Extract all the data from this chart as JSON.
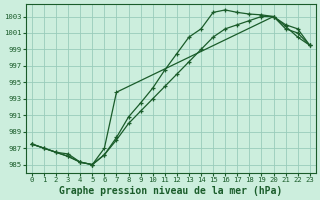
{
  "title": "Graphe pression niveau de la mer (hPa)",
  "bg_color": "#cceedd",
  "grid_color": "#99ccbb",
  "line_color": "#1a5c2a",
  "xlim": [
    -0.5,
    23.5
  ],
  "ylim": [
    984.0,
    1004.5
  ],
  "yticks": [
    985,
    987,
    989,
    991,
    993,
    995,
    997,
    999,
    1001,
    1003
  ],
  "xticks": [
    0,
    1,
    2,
    3,
    4,
    5,
    6,
    7,
    8,
    9,
    10,
    11,
    12,
    13,
    14,
    15,
    16,
    17,
    18,
    19,
    20,
    21,
    22,
    23
  ],
  "series1_x": [
    0,
    1,
    2,
    3,
    4,
    5,
    6,
    7,
    8,
    9,
    10,
    11,
    12,
    13,
    14,
    15,
    16,
    17,
    18,
    19,
    20,
    21,
    22,
    23
  ],
  "series1_y": [
    987.5,
    987.0,
    986.5,
    986.3,
    985.3,
    985.0,
    986.2,
    988.3,
    990.8,
    992.5,
    994.3,
    996.5,
    998.5,
    1000.5,
    1001.5,
    1003.5,
    1003.8,
    1003.5,
    1003.3,
    1003.2,
    1003.0,
    1001.5,
    1001.0,
    999.5
  ],
  "series2_x": [
    0,
    1,
    2,
    3,
    4,
    5,
    6,
    7,
    8,
    9,
    10,
    11,
    12,
    13,
    14,
    15,
    16,
    17,
    18,
    19,
    20,
    21,
    22,
    23
  ],
  "series2_y": [
    987.5,
    987.0,
    986.5,
    986.0,
    985.3,
    985.0,
    986.2,
    988.0,
    990.0,
    991.5,
    993.0,
    994.5,
    996.0,
    997.5,
    999.0,
    1000.5,
    1001.5,
    1002.0,
    1002.5,
    1003.0,
    1003.0,
    1002.0,
    1001.5,
    999.5
  ],
  "series3_x": [
    0,
    3,
    4,
    5,
    6,
    7,
    20,
    21,
    22,
    23
  ],
  "series3_y": [
    987.5,
    986.0,
    985.3,
    985.0,
    987.0,
    993.8,
    1003.0,
    1001.8,
    1000.5,
    999.5
  ],
  "fontsize_title": 7.0,
  "fontsize_ticks": 5.2
}
